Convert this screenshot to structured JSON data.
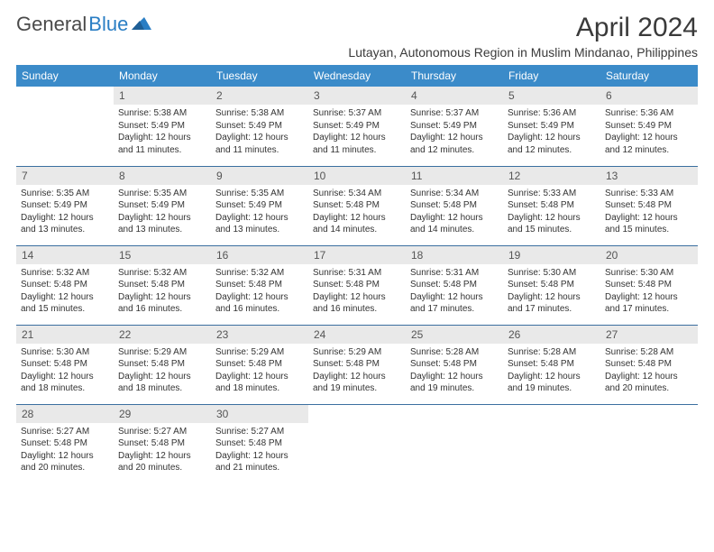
{
  "brand": {
    "part1": "General",
    "part2": "Blue"
  },
  "title": "April 2024",
  "location": "Lutayan, Autonomous Region in Muslim Mindanao, Philippines",
  "colors": {
    "header_bg": "#3b8bc9",
    "header_text": "#ffffff",
    "daynum_bg": "#e9e9e9",
    "row_border": "#3b6fa0",
    "body_text": "#333333",
    "brand_gray": "#4a4a4a",
    "brand_blue": "#2a7ec4"
  },
  "weekdays": [
    "Sunday",
    "Monday",
    "Tuesday",
    "Wednesday",
    "Thursday",
    "Friday",
    "Saturday"
  ],
  "weeks": [
    [
      null,
      {
        "n": "1",
        "sr": "Sunrise: 5:38 AM",
        "ss": "Sunset: 5:49 PM",
        "d1": "Daylight: 12 hours",
        "d2": "and 11 minutes."
      },
      {
        "n": "2",
        "sr": "Sunrise: 5:38 AM",
        "ss": "Sunset: 5:49 PM",
        "d1": "Daylight: 12 hours",
        "d2": "and 11 minutes."
      },
      {
        "n": "3",
        "sr": "Sunrise: 5:37 AM",
        "ss": "Sunset: 5:49 PM",
        "d1": "Daylight: 12 hours",
        "d2": "and 11 minutes."
      },
      {
        "n": "4",
        "sr": "Sunrise: 5:37 AM",
        "ss": "Sunset: 5:49 PM",
        "d1": "Daylight: 12 hours",
        "d2": "and 12 minutes."
      },
      {
        "n": "5",
        "sr": "Sunrise: 5:36 AM",
        "ss": "Sunset: 5:49 PM",
        "d1": "Daylight: 12 hours",
        "d2": "and 12 minutes."
      },
      {
        "n": "6",
        "sr": "Sunrise: 5:36 AM",
        "ss": "Sunset: 5:49 PM",
        "d1": "Daylight: 12 hours",
        "d2": "and 12 minutes."
      }
    ],
    [
      {
        "n": "7",
        "sr": "Sunrise: 5:35 AM",
        "ss": "Sunset: 5:49 PM",
        "d1": "Daylight: 12 hours",
        "d2": "and 13 minutes."
      },
      {
        "n": "8",
        "sr": "Sunrise: 5:35 AM",
        "ss": "Sunset: 5:49 PM",
        "d1": "Daylight: 12 hours",
        "d2": "and 13 minutes."
      },
      {
        "n": "9",
        "sr": "Sunrise: 5:35 AM",
        "ss": "Sunset: 5:49 PM",
        "d1": "Daylight: 12 hours",
        "d2": "and 13 minutes."
      },
      {
        "n": "10",
        "sr": "Sunrise: 5:34 AM",
        "ss": "Sunset: 5:48 PM",
        "d1": "Daylight: 12 hours",
        "d2": "and 14 minutes."
      },
      {
        "n": "11",
        "sr": "Sunrise: 5:34 AM",
        "ss": "Sunset: 5:48 PM",
        "d1": "Daylight: 12 hours",
        "d2": "and 14 minutes."
      },
      {
        "n": "12",
        "sr": "Sunrise: 5:33 AM",
        "ss": "Sunset: 5:48 PM",
        "d1": "Daylight: 12 hours",
        "d2": "and 15 minutes."
      },
      {
        "n": "13",
        "sr": "Sunrise: 5:33 AM",
        "ss": "Sunset: 5:48 PM",
        "d1": "Daylight: 12 hours",
        "d2": "and 15 minutes."
      }
    ],
    [
      {
        "n": "14",
        "sr": "Sunrise: 5:32 AM",
        "ss": "Sunset: 5:48 PM",
        "d1": "Daylight: 12 hours",
        "d2": "and 15 minutes."
      },
      {
        "n": "15",
        "sr": "Sunrise: 5:32 AM",
        "ss": "Sunset: 5:48 PM",
        "d1": "Daylight: 12 hours",
        "d2": "and 16 minutes."
      },
      {
        "n": "16",
        "sr": "Sunrise: 5:32 AM",
        "ss": "Sunset: 5:48 PM",
        "d1": "Daylight: 12 hours",
        "d2": "and 16 minutes."
      },
      {
        "n": "17",
        "sr": "Sunrise: 5:31 AM",
        "ss": "Sunset: 5:48 PM",
        "d1": "Daylight: 12 hours",
        "d2": "and 16 minutes."
      },
      {
        "n": "18",
        "sr": "Sunrise: 5:31 AM",
        "ss": "Sunset: 5:48 PM",
        "d1": "Daylight: 12 hours",
        "d2": "and 17 minutes."
      },
      {
        "n": "19",
        "sr": "Sunrise: 5:30 AM",
        "ss": "Sunset: 5:48 PM",
        "d1": "Daylight: 12 hours",
        "d2": "and 17 minutes."
      },
      {
        "n": "20",
        "sr": "Sunrise: 5:30 AM",
        "ss": "Sunset: 5:48 PM",
        "d1": "Daylight: 12 hours",
        "d2": "and 17 minutes."
      }
    ],
    [
      {
        "n": "21",
        "sr": "Sunrise: 5:30 AM",
        "ss": "Sunset: 5:48 PM",
        "d1": "Daylight: 12 hours",
        "d2": "and 18 minutes."
      },
      {
        "n": "22",
        "sr": "Sunrise: 5:29 AM",
        "ss": "Sunset: 5:48 PM",
        "d1": "Daylight: 12 hours",
        "d2": "and 18 minutes."
      },
      {
        "n": "23",
        "sr": "Sunrise: 5:29 AM",
        "ss": "Sunset: 5:48 PM",
        "d1": "Daylight: 12 hours",
        "d2": "and 18 minutes."
      },
      {
        "n": "24",
        "sr": "Sunrise: 5:29 AM",
        "ss": "Sunset: 5:48 PM",
        "d1": "Daylight: 12 hours",
        "d2": "and 19 minutes."
      },
      {
        "n": "25",
        "sr": "Sunrise: 5:28 AM",
        "ss": "Sunset: 5:48 PM",
        "d1": "Daylight: 12 hours",
        "d2": "and 19 minutes."
      },
      {
        "n": "26",
        "sr": "Sunrise: 5:28 AM",
        "ss": "Sunset: 5:48 PM",
        "d1": "Daylight: 12 hours",
        "d2": "and 19 minutes."
      },
      {
        "n": "27",
        "sr": "Sunrise: 5:28 AM",
        "ss": "Sunset: 5:48 PM",
        "d1": "Daylight: 12 hours",
        "d2": "and 20 minutes."
      }
    ],
    [
      {
        "n": "28",
        "sr": "Sunrise: 5:27 AM",
        "ss": "Sunset: 5:48 PM",
        "d1": "Daylight: 12 hours",
        "d2": "and 20 minutes."
      },
      {
        "n": "29",
        "sr": "Sunrise: 5:27 AM",
        "ss": "Sunset: 5:48 PM",
        "d1": "Daylight: 12 hours",
        "d2": "and 20 minutes."
      },
      {
        "n": "30",
        "sr": "Sunrise: 5:27 AM",
        "ss": "Sunset: 5:48 PM",
        "d1": "Daylight: 12 hours",
        "d2": "and 21 minutes."
      },
      null,
      null,
      null,
      null
    ]
  ]
}
